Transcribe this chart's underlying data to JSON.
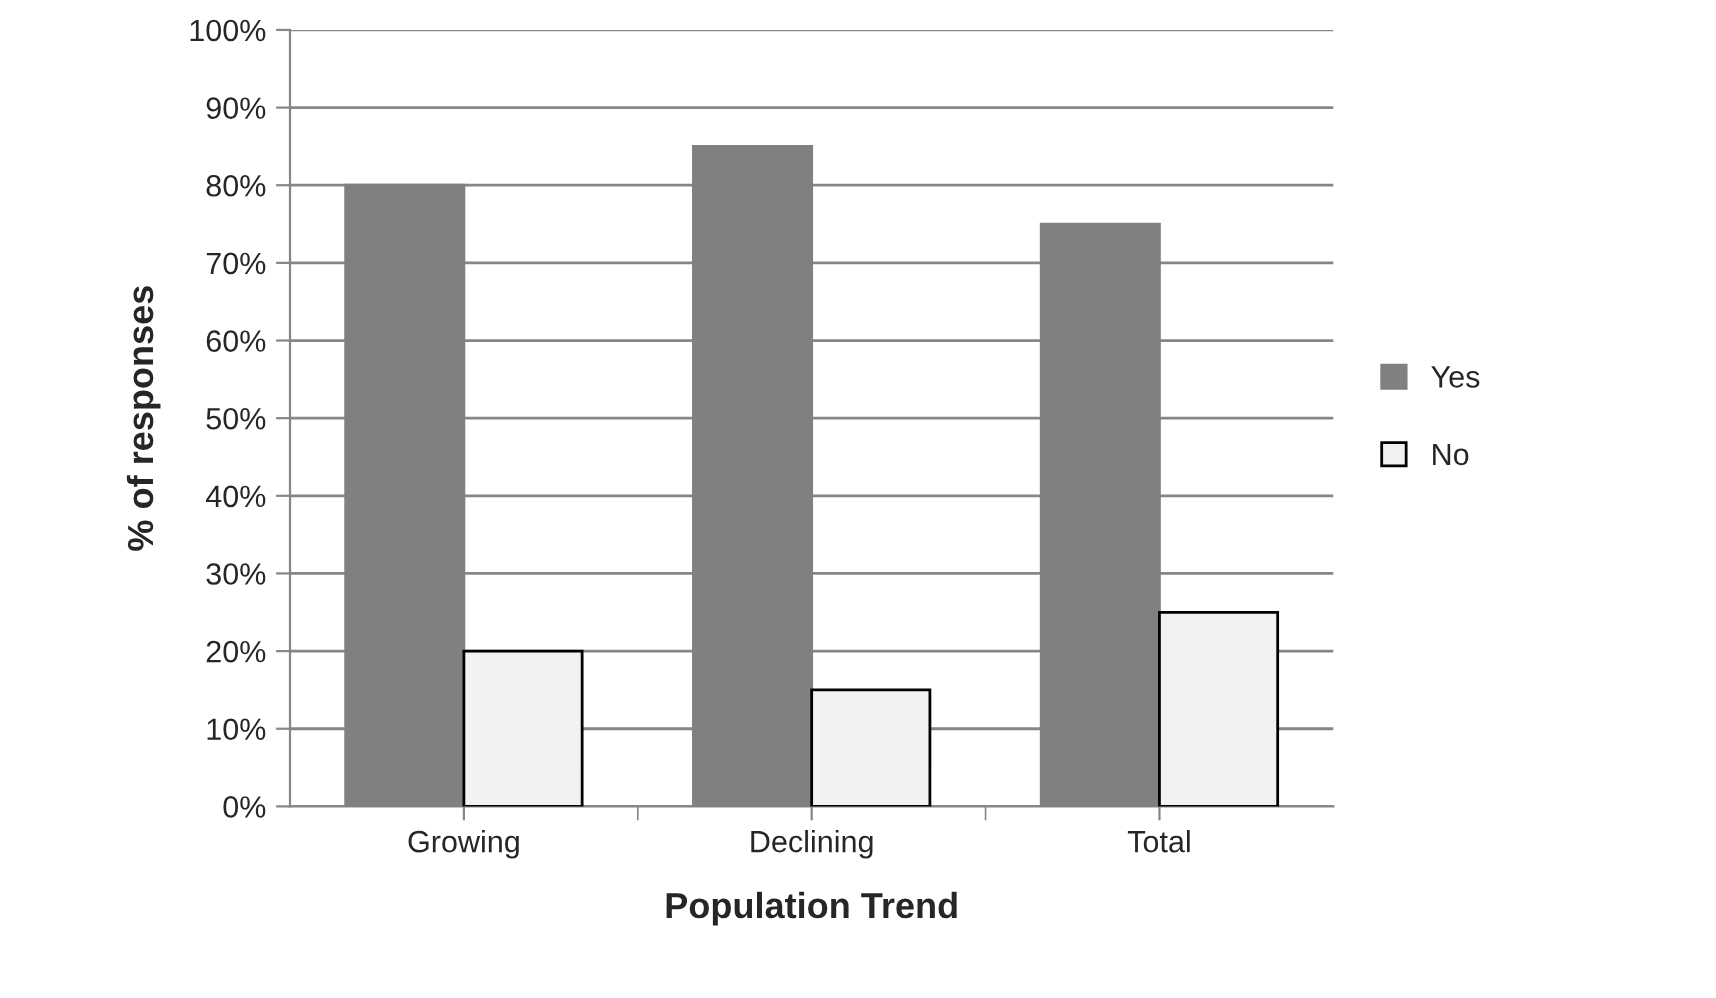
{
  "chart_data": {
    "type": "bar",
    "xlabel": "Population Trend",
    "ylabel": "% of responses",
    "categories": [
      "Growing",
      "Declining",
      "Total"
    ],
    "series": [
      {
        "name": "Yes",
        "color": "#808080",
        "values": [
          80,
          85,
          75
        ]
      },
      {
        "name": "No",
        "color": "#f2f2f2",
        "values": [
          20,
          15,
          25
        ]
      }
    ],
    "ylim": [
      0,
      100
    ],
    "yticks": [
      {
        "value": 0,
        "label": "0%"
      },
      {
        "value": 10,
        "label": "10%"
      },
      {
        "value": 20,
        "label": "20%"
      },
      {
        "value": 30,
        "label": "30%"
      },
      {
        "value": 40,
        "label": "40%"
      },
      {
        "value": 50,
        "label": "50%"
      },
      {
        "value": 60,
        "label": "60%"
      },
      {
        "value": 70,
        "label": "70%"
      },
      {
        "value": 80,
        "label": "80%"
      },
      {
        "value": 90,
        "label": "90%"
      },
      {
        "value": 100,
        "label": "100%"
      }
    ],
    "grid": "y",
    "legend": "right"
  }
}
